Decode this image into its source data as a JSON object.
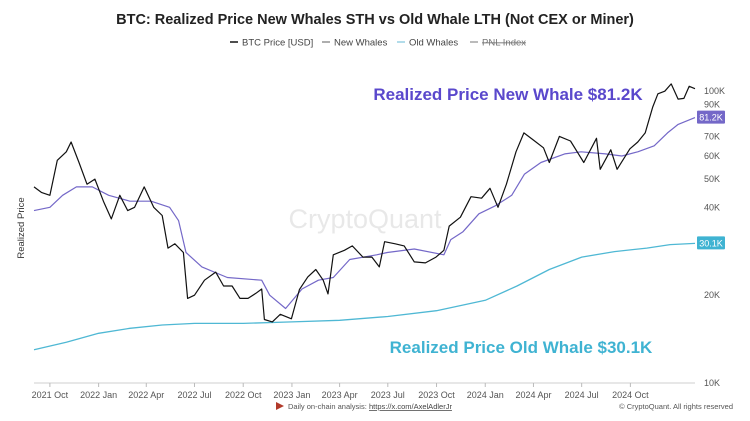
{
  "chart_data": {
    "type": "line",
    "title": "BTC: Realized Price New Whales STH vs Old Whale LTH (Not CEX or Miner)",
    "ylabel": "Realized Price",
    "yscale": "log",
    "ylim": [
      10000,
      130000
    ],
    "xlim": [
      "2021-09-01",
      "2025-01-31"
    ],
    "x_ticks": [
      {
        "date": "2021-10-01",
        "label": "2021 Oct"
      },
      {
        "date": "2022-01-01",
        "label": "2022 Jan"
      },
      {
        "date": "2022-04-01",
        "label": "2022 Apr"
      },
      {
        "date": "2022-07-01",
        "label": "2022 Jul"
      },
      {
        "date": "2022-10-01",
        "label": "2022 Oct"
      },
      {
        "date": "2023-01-01",
        "label": "2023 Jan"
      },
      {
        "date": "2023-04-01",
        "label": "2023 Apr"
      },
      {
        "date": "2023-07-01",
        "label": "2023 Jul"
      },
      {
        "date": "2023-10-01",
        "label": "2023 Oct"
      },
      {
        "date": "2024-01-01",
        "label": "2024 Jan"
      },
      {
        "date": "2024-04-01",
        "label": "2024 Apr"
      },
      {
        "date": "2024-07-01",
        "label": "2024 Jul"
      },
      {
        "date": "2024-10-01",
        "label": "2024 Oct"
      }
    ],
    "y_ticks": [
      {
        "value": 10000,
        "label": "10K"
      },
      {
        "value": 20000,
        "label": "20K"
      },
      {
        "value": 40000,
        "label": "40K"
      },
      {
        "value": 50000,
        "label": "50K"
      },
      {
        "value": 60000,
        "label": "60K"
      },
      {
        "value": 70000,
        "label": "70K"
      },
      {
        "value": 90000,
        "label": "90K"
      },
      {
        "value": 100000,
        "label": "100K"
      }
    ],
    "legend": {
      "placement": "top",
      "items": [
        {
          "label": "BTC Price [USD]",
          "color": "#222222",
          "disabled": false
        },
        {
          "label": "New Whales",
          "color": "#9a9a9a",
          "disabled": false
        },
        {
          "label": "Old Whales",
          "color": "#9fd4e4",
          "disabled": false
        },
        {
          "label": "PNL Index",
          "color": "#aaaaaa",
          "disabled": true
        }
      ]
    },
    "series": [
      {
        "name": "BTC Price [USD]",
        "color": "#111111",
        "x": [
          "2021-09-01",
          "2021-09-15",
          "2021-10-01",
          "2021-10-15",
          "2021-11-01",
          "2021-11-10",
          "2021-11-25",
          "2021-12-10",
          "2021-12-25",
          "2022-01-10",
          "2022-01-25",
          "2022-02-10",
          "2022-02-25",
          "2022-03-10",
          "2022-03-28",
          "2022-04-15",
          "2022-05-01",
          "2022-05-12",
          "2022-05-25",
          "2022-06-10",
          "2022-06-18",
          "2022-07-01",
          "2022-07-20",
          "2022-08-10",
          "2022-08-25",
          "2022-09-10",
          "2022-09-25",
          "2022-10-10",
          "2022-10-25",
          "2022-11-05",
          "2022-11-10",
          "2022-11-25",
          "2022-12-10",
          "2022-12-31",
          "2023-01-15",
          "2023-01-31",
          "2023-02-15",
          "2023-03-01",
          "2023-03-10",
          "2023-03-20",
          "2023-04-10",
          "2023-04-25",
          "2023-05-15",
          "2023-06-01",
          "2023-06-15",
          "2023-06-25",
          "2023-07-15",
          "2023-08-01",
          "2023-08-20",
          "2023-09-10",
          "2023-09-30",
          "2023-10-15",
          "2023-10-25",
          "2023-11-15",
          "2023-12-05",
          "2023-12-25",
          "2024-01-10",
          "2024-01-25",
          "2024-02-10",
          "2024-02-28",
          "2024-03-14",
          "2024-04-01",
          "2024-04-20",
          "2024-05-01",
          "2024-05-20",
          "2024-06-10",
          "2024-06-25",
          "2024-07-05",
          "2024-07-29",
          "2024-08-05",
          "2024-08-25",
          "2024-09-06",
          "2024-09-30",
          "2024-10-15",
          "2024-10-29",
          "2024-11-12",
          "2024-11-22",
          "2024-12-05",
          "2024-12-17",
          "2024-12-30",
          "2025-01-10",
          "2025-01-20",
          "2025-01-31"
        ],
        "y": [
          47000,
          45000,
          44000,
          58000,
          62000,
          67000,
          57000,
          48000,
          50000,
          42000,
          36500,
          44000,
          39000,
          40000,
          47000,
          40000,
          37500,
          29000,
          30000,
          28000,
          19500,
          20000,
          22500,
          24000,
          21500,
          21500,
          19500,
          19500,
          20300,
          21000,
          16500,
          16200,
          17200,
          16600,
          20900,
          23100,
          24500,
          22500,
          20200,
          27500,
          28500,
          29500,
          27000,
          27000,
          25000,
          30500,
          30000,
          29500,
          26000,
          25800,
          27000,
          28500,
          34500,
          37000,
          43500,
          43000,
          46500,
          40000,
          48000,
          62000,
          72000,
          68000,
          64000,
          57000,
          70000,
          67500,
          61000,
          57000,
          69000,
          54000,
          63000,
          54000,
          63500,
          67000,
          72000,
          88000,
          98000,
          100000,
          106000,
          94000,
          94500,
          104000,
          102000
        ]
      },
      {
        "name": "New Whales",
        "color": "#7468c8",
        "x": [
          "2021-09-01",
          "2021-10-01",
          "2021-10-25",
          "2021-11-20",
          "2021-12-20",
          "2022-01-20",
          "2022-03-01",
          "2022-04-10",
          "2022-05-15",
          "2022-06-01",
          "2022-06-15",
          "2022-07-15",
          "2022-09-01",
          "2022-11-05",
          "2022-11-20",
          "2022-12-20",
          "2023-01-20",
          "2023-02-20",
          "2023-03-20",
          "2023-04-20",
          "2023-06-10",
          "2023-06-30",
          "2023-08-20",
          "2023-10-15",
          "2023-10-28",
          "2023-11-20",
          "2023-12-20",
          "2024-01-20",
          "2024-02-20",
          "2024-03-15",
          "2024-04-15",
          "2024-05-30",
          "2024-06-30",
          "2024-08-15",
          "2024-09-15",
          "2024-10-15",
          "2024-11-15",
          "2024-12-10",
          "2024-12-30",
          "2025-01-31"
        ],
        "y": [
          39000,
          40000,
          44000,
          47000,
          47000,
          44000,
          42000,
          42000,
          40000,
          36000,
          28000,
          25000,
          23000,
          22500,
          20000,
          18000,
          21000,
          22500,
          23000,
          26500,
          27500,
          28000,
          28800,
          27500,
          31000,
          33000,
          38000,
          40500,
          44000,
          52000,
          57000,
          61000,
          62000,
          61000,
          60000,
          62000,
          65000,
          72000,
          77000,
          81200
        ]
      },
      {
        "name": "Old Whales",
        "color": "#4fb8d4",
        "x": [
          "2021-09-01",
          "2021-11-01",
          "2022-01-01",
          "2022-03-01",
          "2022-05-01",
          "2022-07-01",
          "2022-10-01",
          "2023-01-01",
          "2023-04-01",
          "2023-07-01",
          "2023-10-01",
          "2024-01-01",
          "2024-03-01",
          "2024-05-01",
          "2024-07-01",
          "2024-09-01",
          "2024-11-01",
          "2024-12-15",
          "2025-01-31"
        ],
        "y": [
          13000,
          13800,
          14800,
          15400,
          15800,
          16000,
          16000,
          16200,
          16400,
          16900,
          17700,
          19200,
          21500,
          24500,
          27000,
          28200,
          29000,
          29800,
          30100
        ]
      }
    ],
    "annotations": [
      {
        "text": "Realized Price New Whale $81.2K",
        "color": "#5a48cc"
      },
      {
        "text": "Realized Price Old Whale $30.1K",
        "color": "#3fb3d2"
      }
    ],
    "value_tags": [
      {
        "label": "81.2K",
        "value": 81200,
        "color": "#7468c8"
      },
      {
        "label": "30.1K",
        "value": 30100,
        "color": "#3fb3d2"
      }
    ],
    "watermark": "CryptoQuant",
    "footer": {
      "left_text": "Daily on-chain analysis:",
      "link": "https://x.com/AxelAdlerJr",
      "right": "© CryptoQuant. All rights reserved"
    },
    "grid": false
  }
}
